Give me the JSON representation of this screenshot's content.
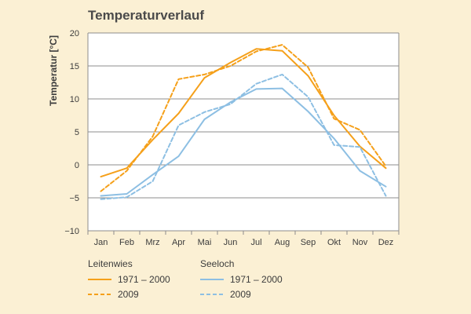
{
  "chart_data": {
    "type": "line",
    "title": "Temperaturverlauf",
    "ylabel": "Temperatur [°C]",
    "xlabel": "",
    "ylim": [
      -10,
      20
    ],
    "yticks": [
      20,
      15,
      10,
      5,
      0,
      -5,
      -10
    ],
    "ytick_labels": [
      "20",
      "15",
      "10",
      "5",
      "0",
      "−5",
      "−10"
    ],
    "grid": "horizontal",
    "categories": [
      "Jan",
      "Feb",
      "Mrz",
      "Apr",
      "Mai",
      "Jun",
      "Jul",
      "Aug",
      "Sep",
      "Okt",
      "Nov",
      "Dez"
    ],
    "legend_position": "bottom",
    "legend_groups": [
      {
        "group": "Leitenwies",
        "entries": [
          "1971 – 2000",
          "2009"
        ]
      },
      {
        "group": "Seeloch",
        "entries": [
          "1971 – 2000",
          "2009"
        ]
      }
    ],
    "series": [
      {
        "group": "Leitenwies",
        "name": "1971 – 2000",
        "color": "#f5a01a",
        "dashed": false,
        "values": [
          -1.8,
          -0.5,
          3.8,
          7.8,
          13.2,
          15.5,
          17.6,
          17.3,
          13.5,
          7.5,
          2.8,
          -0.5
        ]
      },
      {
        "group": "Leitenwies",
        "name": "2009",
        "color": "#f5a01a",
        "dashed": true,
        "values": [
          -4.0,
          -0.9,
          4.3,
          13.0,
          13.7,
          15.0,
          17.2,
          18.2,
          14.8,
          7.0,
          5.3,
          -0.2
        ]
      },
      {
        "group": "Seeloch",
        "name": "1971 – 2000",
        "color": "#8dbfe3",
        "dashed": false,
        "values": [
          -4.7,
          -4.4,
          -1.5,
          1.3,
          6.9,
          9.5,
          11.5,
          11.6,
          8.1,
          4.0,
          -0.9,
          -3.3
        ]
      },
      {
        "group": "Seeloch",
        "name": "2009",
        "color": "#8dbfe3",
        "dashed": true,
        "values": [
          -5.2,
          -4.9,
          -2.5,
          6.0,
          8.0,
          9.2,
          12.3,
          13.7,
          10.3,
          3.0,
          2.7,
          -4.7
        ]
      }
    ]
  }
}
